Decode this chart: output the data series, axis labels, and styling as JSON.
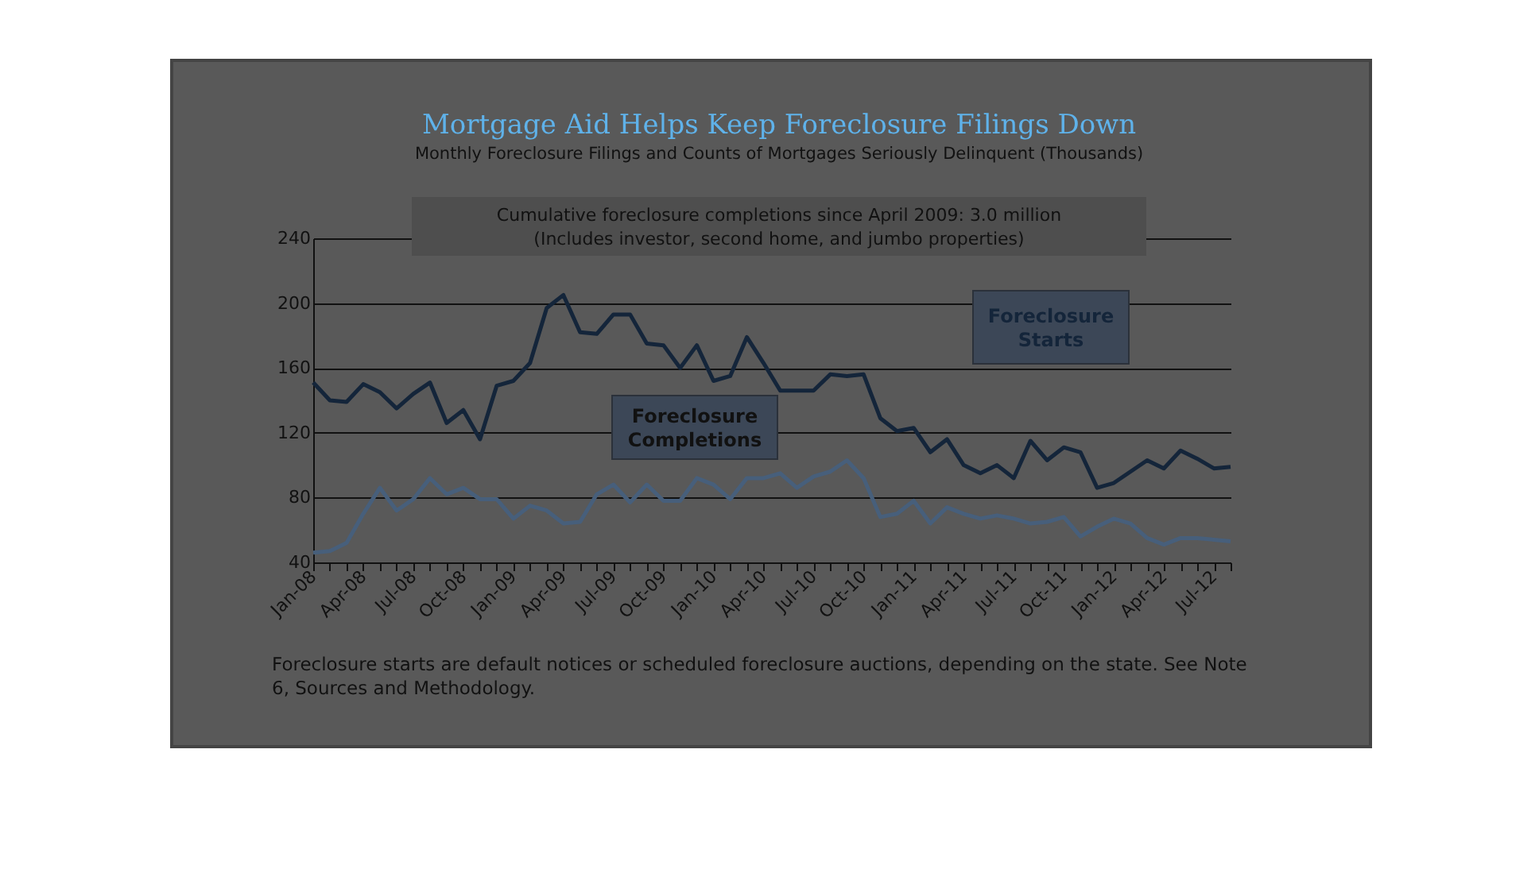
{
  "chart_data": {
    "type": "line",
    "title": "Mortgage Aid Helps Keep Foreclosure Filings Down",
    "subtitle": "Monthly Foreclosure Filings and Counts of Mortgages Seriously Delinquent (Thousands)",
    "categories": [
      "Jan-08",
      null,
      null,
      "Apr-08",
      null,
      null,
      "Jul-08",
      null,
      null,
      "Oct-08",
      null,
      null,
      "Jan-09",
      null,
      null,
      "Apr-09",
      null,
      null,
      "Jul-09",
      null,
      null,
      "Oct-09",
      null,
      null,
      "Jan-10",
      null,
      null,
      "Apr-10",
      null,
      null,
      "Jul-10",
      null,
      null,
      "Oct-10",
      null,
      null,
      "Jan-11",
      null,
      null,
      "Apr-11",
      null,
      null,
      "Jul-11",
      null,
      null,
      "Oct-11",
      null,
      null,
      "Jan-12",
      null,
      null,
      "Apr-12",
      null,
      null,
      "Jul-12",
      null
    ],
    "series": [
      {
        "name": "Foreclosure Starts",
        "color": "#14253a",
        "values": [
          151,
          140,
          139,
          150,
          145,
          135,
          144,
          151,
          126,
          134,
          116,
          149,
          152,
          163,
          197,
          205,
          182,
          181,
          193,
          193,
          175,
          174,
          160,
          174,
          152,
          155,
          179,
          163,
          146,
          146,
          146,
          156,
          155,
          156,
          129,
          121,
          123,
          108,
          116,
          100,
          95,
          100,
          92,
          115,
          103,
          111,
          108,
          86,
          89,
          96,
          103,
          98,
          109,
          104,
          98,
          99
        ]
      },
      {
        "name": "Foreclosure Completions",
        "color": "#475f7b",
        "values": [
          46,
          47,
          52,
          70,
          86,
          72,
          79,
          92,
          82,
          86,
          79,
          79,
          67,
          75,
          72,
          64,
          65,
          82,
          88,
          77,
          88,
          78,
          78,
          92,
          88,
          79,
          92,
          92,
          95,
          86,
          93,
          96,
          103,
          92,
          68,
          70,
          78,
          64,
          74,
          70,
          67,
          69,
          67,
          64,
          65,
          68,
          56,
          62,
          67,
          64,
          55,
          51,
          55,
          55,
          54,
          53
        ]
      }
    ],
    "ylim": [
      40,
      240
    ],
    "yticks": [
      40,
      80,
      120,
      160,
      200,
      240
    ],
    "grid": "y",
    "annotations": [
      "Cumulative foreclosure completions since April 2009: 3.0 million",
      "(Includes investor, second home, and jumbo properties)",
      "Foreclosure starts are default notices or scheduled foreclosure auctions, depending on the state. See Note 6, Sources and Methodology."
    ]
  }
}
